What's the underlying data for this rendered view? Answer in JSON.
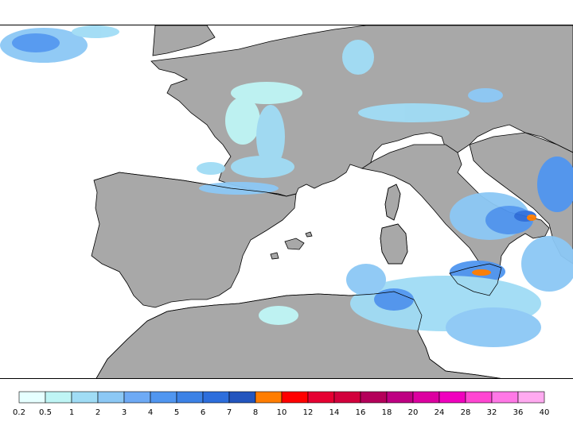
{
  "map": {
    "variable": "precipitation",
    "land_color": "#a8a8a8",
    "sea_color": "#ffffff",
    "border_color": "#000000",
    "highlight_regions": [
      "southern Italy",
      "Sicily"
    ]
  },
  "legend": {
    "labels": [
      "0.2",
      "0.5",
      "1",
      "2",
      "3",
      "4",
      "5",
      "6",
      "7",
      "8",
      "10",
      "12",
      "14",
      "16",
      "18",
      "20",
      "24",
      "28",
      "32",
      "36",
      "40"
    ],
    "colors": [
      "#e6ffff",
      "#bff5f5",
      "#a0dcf5",
      "#8cc8f5",
      "#6eaaf5",
      "#5096f0",
      "#3c82e6",
      "#2d6edc",
      "#2355be",
      "#ff7d00",
      "#ff0000",
      "#e60032",
      "#d2003c",
      "#b4005a",
      "#be0082",
      "#dc00a0",
      "#f000be",
      "#ff46d2",
      "#ff78e6",
      "#ffaaf0"
    ]
  }
}
